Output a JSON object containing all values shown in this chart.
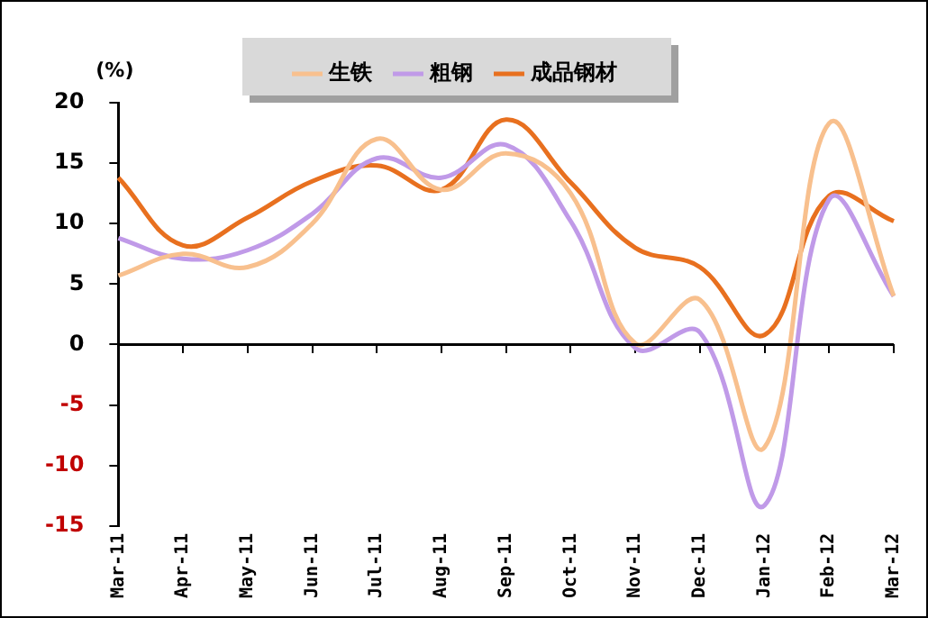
{
  "chart_data": {
    "type": "line",
    "ylabel": "(%)",
    "categories": [
      "Mar-11",
      "Apr-11",
      "May-11",
      "Jun-11",
      "Jul-11",
      "Aug-11",
      "Sep-11",
      "Oct-11",
      "Nov-11",
      "Dec-11",
      "Jan-12",
      "Feb-12",
      "Mar-12"
    ],
    "series": [
      {
        "name": "生铁",
        "color": "#f8c08e",
        "values": [
          5.7,
          7.5,
          6.4,
          10,
          17,
          12.8,
          15.8,
          12.5,
          0.1,
          3.7,
          -8.5,
          18.3,
          4
        ]
      },
      {
        "name": "粗钢",
        "color": "#c09ae8",
        "values": [
          8.8,
          7.1,
          7.8,
          10.8,
          15.4,
          13.8,
          16.5,
          10.2,
          -0.3,
          1,
          -13.3,
          12,
          4
        ]
      },
      {
        "name": "成品钢材",
        "color": "#e8701f",
        "values": [
          13.8,
          8.2,
          10.5,
          13.5,
          14.8,
          12.8,
          18.6,
          13.4,
          8,
          6.4,
          0.8,
          12.3,
          10.2
        ]
      }
    ],
    "ref_lines": [
      {
        "axis": "y",
        "value": 0,
        "color": "#000000",
        "line_style": "solid"
      }
    ],
    "ylim": [
      -15,
      20
    ],
    "yticks": [
      -15,
      -10,
      -5,
      0,
      5,
      10,
      15,
      20
    ],
    "grid": false,
    "legend": "top",
    "marker": "none",
    "line_style": "solid"
  }
}
